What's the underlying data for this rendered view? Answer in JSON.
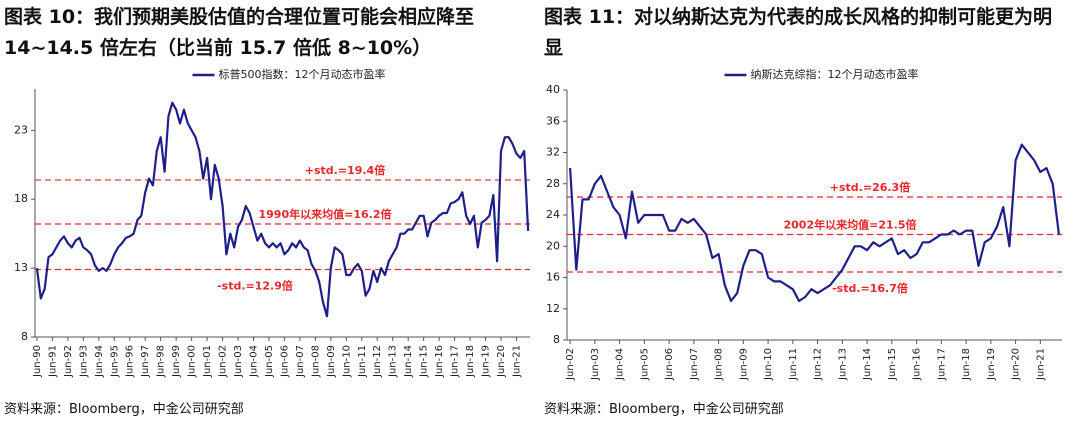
{
  "chart_data": [
    {
      "type": "line",
      "title": "图表 10：我们预期美股估值的合理位置可能会相应降至 14~14.5 倍左右（比当前 15.7 倍低 8~10%）",
      "source": "资料来源：Bloomberg，中金公司研究部",
      "categories": [
        "Jun-90",
        null,
        null,
        null,
        "Jun-91",
        null,
        null,
        null,
        "Jun-92",
        null,
        null,
        null,
        "Jun-93",
        null,
        null,
        null,
        "Jun-94",
        null,
        null,
        null,
        "Jun-95",
        null,
        null,
        null,
        "Jun-96",
        null,
        null,
        null,
        "Jun-97",
        null,
        null,
        null,
        "Jun-98",
        null,
        null,
        null,
        "Jun-99",
        null,
        null,
        null,
        "Jun-00",
        null,
        null,
        null,
        "Jun-01",
        null,
        null,
        null,
        "Jun-02",
        null,
        null,
        null,
        "Jun-03",
        null,
        null,
        null,
        "Jun-04",
        null,
        null,
        null,
        "Jun-05",
        null,
        null,
        null,
        "Jun-06",
        null,
        null,
        null,
        "Jun-07",
        null,
        null,
        null,
        "Jun-08",
        null,
        null,
        null,
        "Jun-09",
        null,
        null,
        null,
        "Jun-10",
        null,
        null,
        null,
        "Jun-11",
        null,
        null,
        null,
        "Jun-12",
        null,
        null,
        null,
        "Jun-13",
        null,
        null,
        null,
        "Jun-14",
        null,
        null,
        null,
        "Jun-15",
        null,
        null,
        null,
        "Jun-16",
        null,
        null,
        null,
        "Jun-17",
        null,
        null,
        null,
        "Jun-18",
        null,
        null,
        null,
        "Jun-19",
        null,
        null,
        null,
        "Jun-20",
        null,
        null,
        null,
        "Jun-21",
        null,
        null,
        null
      ],
      "series": [
        {
          "name": "标普500指数：12个月动态市盈率",
          "color": "#1f1f8c",
          "values": [
            13,
            10.8,
            11.5,
            13.8,
            14,
            14.5,
            15,
            15.3,
            14.8,
            14.5,
            15,
            15.2,
            14.5,
            14.3,
            14,
            13.2,
            12.8,
            13,
            12.8,
            13.3,
            14,
            14.5,
            14.8,
            15.2,
            15.3,
            15.5,
            16.5,
            16.8,
            18.5,
            19.5,
            19,
            21.5,
            22.5,
            20,
            24,
            25,
            24.5,
            23.5,
            24.5,
            23.5,
            23,
            22.5,
            21.5,
            19.5,
            21,
            18,
            20.5,
            19.5,
            17.5,
            14,
            15.5,
            14.5,
            16,
            16.5,
            17.5,
            17,
            16,
            15,
            15.5,
            14.8,
            14.5,
            14.8,
            14.5,
            14.8,
            14,
            14.3,
            14.8,
            14.5,
            15,
            14.5,
            14.3,
            13.3,
            12.8,
            12,
            10.5,
            9.5,
            13,
            14.5,
            14.3,
            14,
            12.5,
            12.5,
            13,
            13.3,
            12.8,
            11,
            11.5,
            12.8,
            12,
            13,
            12.5,
            13.5,
            14,
            14.5,
            15.5,
            15.5,
            15.8,
            15.8,
            16.3,
            16.8,
            16.8,
            15.3,
            16.3,
            16.5,
            16.8,
            17,
            17,
            17.7,
            17.8,
            18,
            18.5,
            16.8,
            16.2,
            16.8,
            14.5,
            16.3,
            16.5,
            16.8,
            18.3,
            13.5,
            21.5,
            22.5,
            22.5,
            22,
            21.3,
            21,
            21.5,
            15.7
          ]
        }
      ],
      "hline_color": "#e8282b",
      "hlines": [
        {
          "value": 19.4,
          "label": "+std.=19.4倍"
        },
        {
          "value": 16.2,
          "label": "1990年以来均值=16.2倍"
        },
        {
          "value": 12.9,
          "label": "-std.=12.9倍"
        }
      ],
      "ylim": [
        8,
        26
      ],
      "yticks": [
        8,
        13,
        18,
        23
      ]
    },
    {
      "type": "line",
      "title": "图表 11：对以纳斯达克为代表的成长风格的抑制可能更为明显",
      "source": "资料来源：Bloomberg，中金公司研究部",
      "categories": [
        "Jun-02",
        null,
        null,
        null,
        "Jun-03",
        null,
        null,
        null,
        "Jun-04",
        null,
        null,
        null,
        "Jun-05",
        null,
        null,
        null,
        "Jun-06",
        null,
        null,
        null,
        "Jun-07",
        null,
        null,
        null,
        "Jun-08",
        null,
        null,
        null,
        "Jun-09",
        null,
        null,
        null,
        "Jun-10",
        null,
        null,
        null,
        "Jun-11",
        null,
        null,
        null,
        "Jun-12",
        null,
        null,
        null,
        "Jun-13",
        null,
        null,
        null,
        "Jun-14",
        null,
        null,
        null,
        "Jun-15",
        null,
        null,
        null,
        "Jun-16",
        null,
        null,
        null,
        "Jun-17",
        null,
        null,
        null,
        "Jun-18",
        null,
        null,
        null,
        "Jun-19",
        null,
        null,
        null,
        "Jun-20",
        null,
        null,
        null,
        "Jun-21",
        null,
        null,
        null
      ],
      "series": [
        {
          "name": "纳斯达克综指：12个月动态市盈率",
          "color": "#1f1f8c",
          "values": [
            30,
            17,
            26,
            26,
            28,
            29,
            27,
            25,
            24,
            21,
            27,
            23,
            24,
            24,
            24,
            24,
            22,
            22,
            23.5,
            23,
            23.5,
            22.5,
            21.5,
            18.5,
            19,
            15,
            13,
            14,
            17.5,
            19.5,
            19.5,
            19,
            16,
            15.5,
            15.5,
            15,
            14.5,
            13,
            13.5,
            14.5,
            14,
            14.5,
            15,
            16,
            17,
            18.5,
            20,
            20,
            19.5,
            20.5,
            20,
            20.5,
            21,
            19,
            19.5,
            18.5,
            19,
            20.5,
            20.5,
            21,
            21.5,
            21.5,
            22,
            21.5,
            22,
            22,
            17.5,
            20.5,
            21,
            22.5,
            25,
            20,
            31,
            33,
            32,
            31,
            29.5,
            30,
            28,
            21.5
          ]
        }
      ],
      "hline_color": "#e8282b",
      "hlines": [
        {
          "value": 26.3,
          "label": "+std.=26.3倍"
        },
        {
          "value": 21.5,
          "label": "2002年以来均值=21.5倍"
        },
        {
          "value": 16.7,
          "label": "-std.=16.7倍"
        }
      ],
      "ylim": [
        8,
        40
      ],
      "yticks": [
        8,
        12,
        16,
        20,
        24,
        28,
        32,
        36,
        40
      ]
    }
  ]
}
